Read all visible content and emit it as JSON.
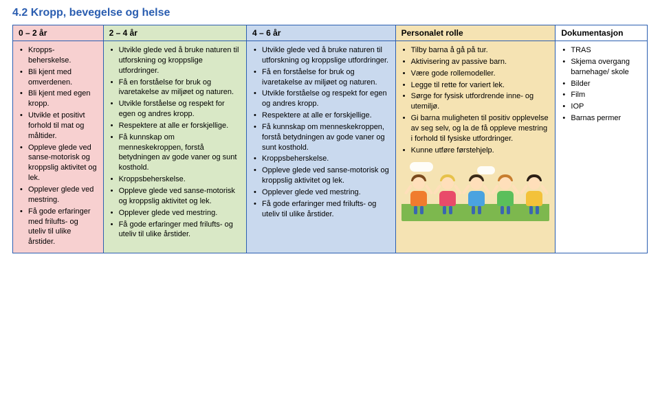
{
  "section_title": "4.2 Kropp, bevegelse og helse",
  "columns": {
    "col0": {
      "header": "0 – 2 år",
      "bg": "#f7d0d0"
    },
    "col1": {
      "header": "2 – 4 år",
      "bg": "#d9e8c6"
    },
    "col2": {
      "header": "4 – 6 år",
      "bg": "#c9d9ee"
    },
    "col3": {
      "header": "Personalet rolle",
      "bg": "#f5e3b3"
    },
    "col4": {
      "header": "Dokumentasjon",
      "bg": "#ffffff"
    }
  },
  "lists": {
    "col0": [
      "Kropps-beherskelse.",
      "Bli kjent med omverdenen.",
      "Bli kjent med egen kropp.",
      "Utvikle et positivt forhold til mat og måltider.",
      "Oppleve glede ved sanse-motorisk og kroppslig aktivitet og lek.",
      "Opplever glede ved mestring.",
      "Få gode erfaringer med frilufts- og uteliv til ulike årstider."
    ],
    "col1": [
      "Utvikle glede ved å bruke naturen til utforskning og kroppslige utfordringer.",
      "Få en forståelse for bruk og ivaretakelse av miljøet og naturen.",
      "Utvikle forståelse og respekt for egen og andres kropp.",
      "Respektere at alle er forskjellige.",
      "Få kunnskap om menneskekroppen, forstå betydningen av gode vaner og sunt kosthold.",
      "Kroppsbeherskelse.",
      "Oppleve glede ved sanse-motorisk og kroppslig aktivitet og lek.",
      "Opplever glede ved mestring.",
      "Få gode erfaringer med frilufts- og uteliv til ulike årstider."
    ],
    "col2": [
      "Utvikle glede ved å bruke naturen til utforskning og kroppslige utfordringer.",
      "Få en forståelse for bruk og ivaretakelse av miljøet og naturen.",
      "Utvikle forståelse og respekt for egen og andres kropp.",
      "Respektere at alle er forskjellige.",
      "Få kunnskap om menneskekroppen, forstå betydningen av gode vaner og sunt kosthold.",
      "Kroppsbeherskelse.",
      "Oppleve glede ved sanse-motorisk og kroppslig aktivitet og lek.",
      "Opplever glede ved mestring.",
      "Få gode erfaringer med frilufts- og uteliv til ulike årstider."
    ],
    "col3": [
      "Tilby barna å gå på tur.",
      "Aktivisering av passive barn.",
      "Være gode rollemodeller.",
      "Legge til rette for variert lek.",
      "Sørge for fysisk utfordrende inne- og utemiljø.",
      "Gi barna muligheten til positiv opplevelse av seg selv, og la de få oppleve mestring i forhold til fysiske utfordringer.",
      "Kunne utføre førstehjelp."
    ],
    "col4": [
      "TRAS",
      "Skjema overgang barnehage/ skole",
      "Bilder",
      "Film",
      "IOP",
      "Barnas permer"
    ]
  },
  "kids": [
    {
      "hair": "#7a4a1e",
      "shirt": "#f07c2e"
    },
    {
      "hair": "#e6c24a",
      "shirt": "#e94b6a"
    },
    {
      "hair": "#3a2a18",
      "shirt": "#4aa3e0"
    },
    {
      "hair": "#c77d2e",
      "shirt": "#5bbf5b"
    },
    {
      "hair": "#2a1e14",
      "shirt": "#f3c23a"
    }
  ]
}
